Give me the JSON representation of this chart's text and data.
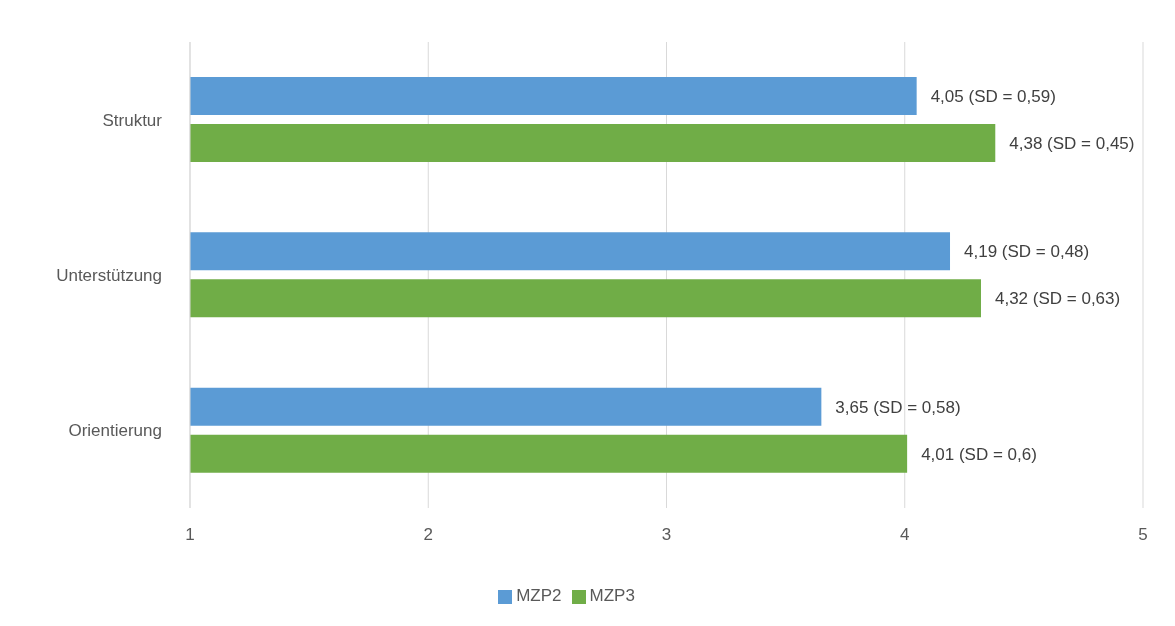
{
  "chart_data": {
    "type": "bar",
    "orientation": "horizontal",
    "categories": [
      "Struktur",
      "Unterstützung",
      "Orientierung"
    ],
    "series": [
      {
        "name": "MZP2",
        "color": "#5b9bd5",
        "values": [
          4.05,
          4.19,
          3.65
        ],
        "value_labels": [
          "4,05 (SD = 0,59)",
          "4,19 (SD = 0,48)",
          "3,65 (SD = 0,58)"
        ]
      },
      {
        "name": "MZP3",
        "color": "#70ad47",
        "values": [
          4.38,
          4.32,
          4.01
        ],
        "value_labels": [
          "4,38 (SD = 0,45)",
          "4,32 (SD = 0,63)",
          "4,01 (SD = 0,6)"
        ]
      }
    ],
    "xlim": [
      1,
      5
    ],
    "xticks": [
      1,
      2,
      3,
      4,
      5
    ],
    "grid": "x",
    "legend": "bottom"
  }
}
